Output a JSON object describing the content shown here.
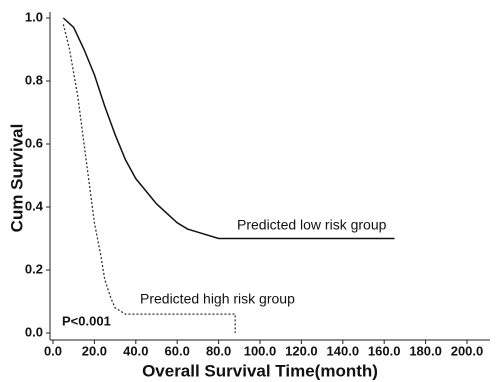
{
  "chart_data": {
    "type": "line",
    "x_label": "Overall Survival Time(month)",
    "y_label": "Cum Survival",
    "annotations": [
      "Predicted low risk group",
      "Predicted high risk group",
      "P<0.001"
    ],
    "xlim": [
      0,
      200
    ],
    "ylim": [
      0,
      1
    ],
    "xticks": [
      {
        "value": 0,
        "label": "0.0"
      },
      {
        "value": 20,
        "label": "20.0"
      },
      {
        "value": 40,
        "label": "40.0"
      },
      {
        "value": 60,
        "label": "60.0"
      },
      {
        "value": 80,
        "label": "80.0"
      },
      {
        "value": 100,
        "label": "100.0"
      },
      {
        "value": 120,
        "label": "120.0"
      },
      {
        "value": 140,
        "label": "140.0"
      },
      {
        "value": 160,
        "label": "160.0"
      },
      {
        "value": 180,
        "label": "180.0"
      },
      {
        "value": 200,
        "label": "200.0"
      }
    ],
    "yticks": [
      {
        "value": 0,
        "label": "0.0"
      },
      {
        "value": 0.2,
        "label": "0.2"
      },
      {
        "value": 0.4,
        "label": "0.4"
      },
      {
        "value": 0.6,
        "label": "0.6"
      },
      {
        "value": 0.8,
        "label": "0.8"
      },
      {
        "value": 1,
        "label": "1.0"
      }
    ],
    "series": [
      {
        "name": "Predicted low risk group",
        "color": "#111111",
        "dash": false,
        "x": [
          5,
          10,
          15,
          20,
          25,
          30,
          35,
          40,
          45,
          50,
          55,
          60,
          65,
          70,
          80,
          165
        ],
        "values": [
          1.0,
          0.97,
          0.9,
          0.82,
          0.72,
          0.63,
          0.55,
          0.49,
          0.45,
          0.41,
          0.38,
          0.35,
          0.33,
          0.32,
          0.3,
          0.3
        ]
      },
      {
        "name": "Predicted high risk group",
        "color": "#333333",
        "dash": true,
        "x": [
          5,
          8,
          12,
          15,
          18,
          20,
          23,
          25,
          28,
          30,
          35,
          40,
          88,
          88
        ],
        "values": [
          0.98,
          0.9,
          0.75,
          0.6,
          0.45,
          0.35,
          0.25,
          0.17,
          0.11,
          0.08,
          0.06,
          0.06,
          0.06,
          0.0
        ]
      }
    ]
  }
}
